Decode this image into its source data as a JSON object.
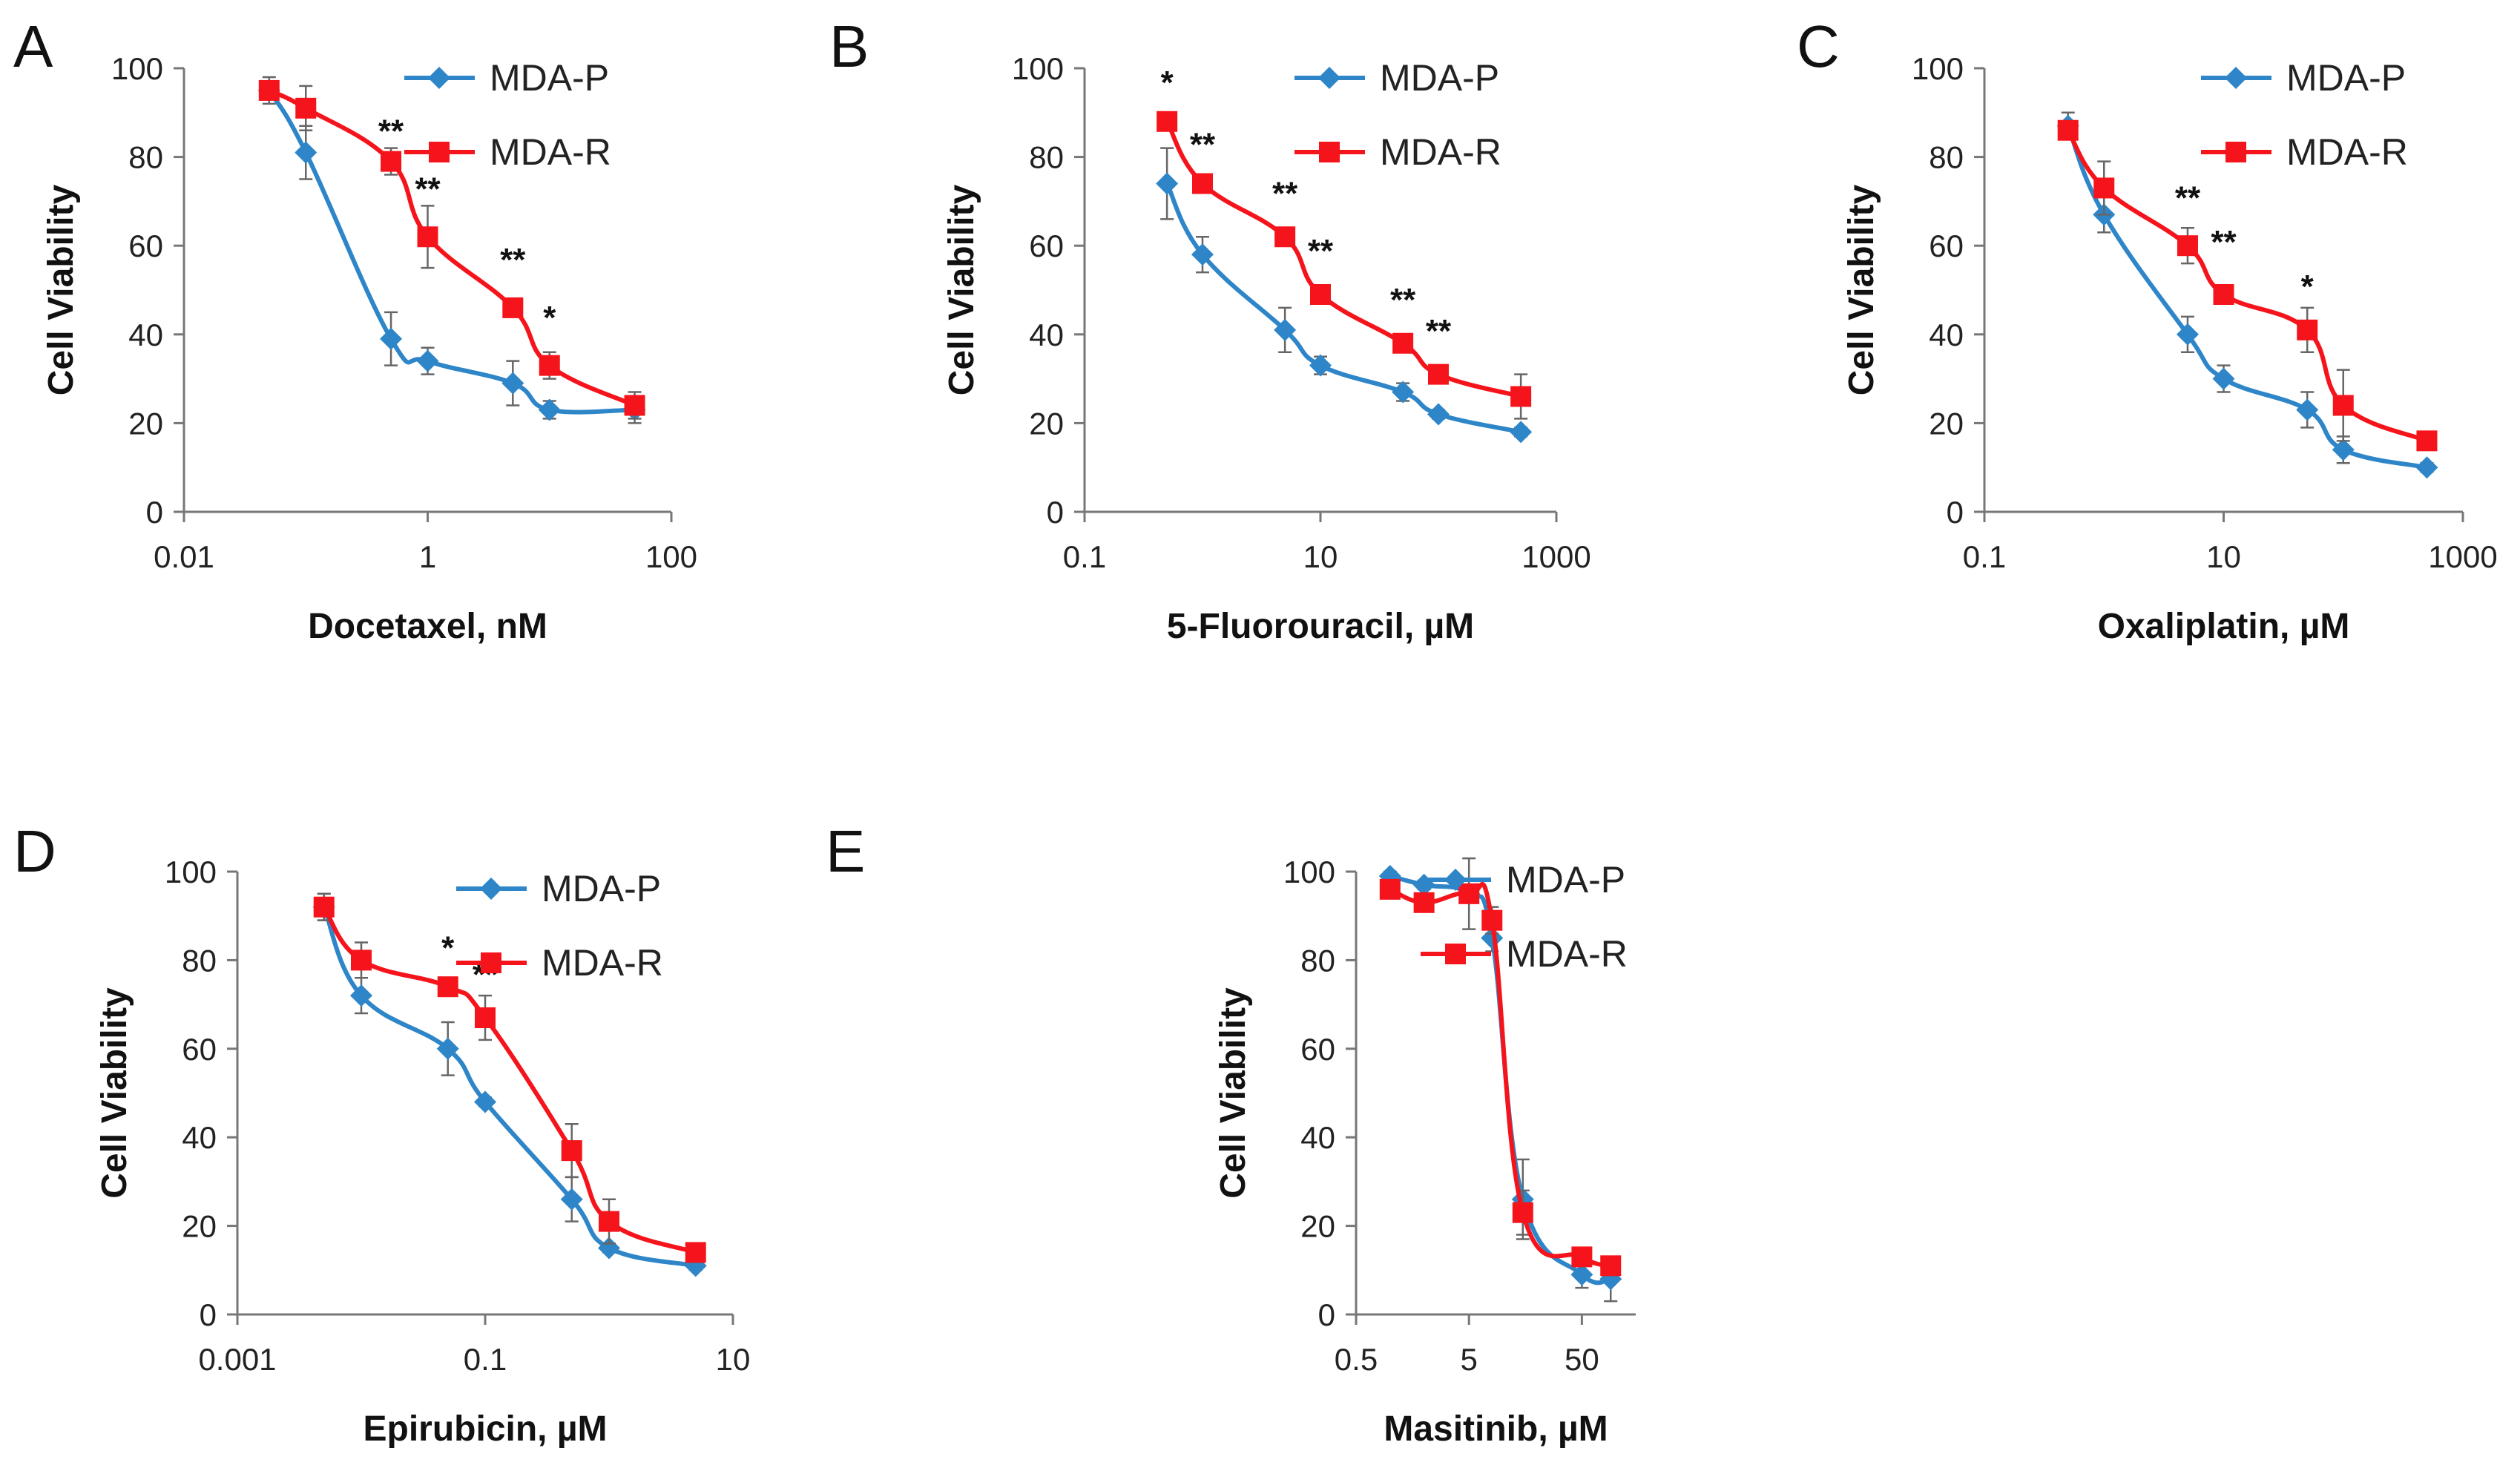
{
  "figure": {
    "series_meta": {
      "MDA-P": {
        "color": "#2E86C8",
        "marker": "diamond"
      },
      "MDA-R": {
        "color": "#F5141B",
        "marker": "square"
      }
    }
  },
  "chart_data": [
    {
      "panel": "A",
      "type": "line",
      "xscale": "log",
      "xlabel": "Docetaxel, nM",
      "ylabel": "Cell Viability",
      "xlim": [
        0.01,
        100
      ],
      "ylim": [
        0,
        100
      ],
      "xticks": [
        0.01,
        1,
        100
      ],
      "xtick_labels": [
        "0.01",
        "1",
        "100"
      ],
      "yticks": [
        0,
        20,
        40,
        60,
        80,
        100
      ],
      "ytick_labels": [
        "0",
        "20",
        "40",
        "60",
        "80",
        "100"
      ],
      "legend": [
        "MDA-P",
        "MDA-R"
      ],
      "legend_position": "top-right",
      "series": [
        {
          "name": "MDA-P",
          "x": [
            0.05,
            0.1,
            0.5,
            1,
            5,
            10,
            50
          ],
          "y": [
            95,
            81,
            39,
            34,
            29,
            23,
            23
          ],
          "err": [
            3,
            6,
            6,
            3,
            5,
            2,
            3
          ]
        },
        {
          "name": "MDA-R",
          "x": [
            0.05,
            0.1,
            0.5,
            1,
            5,
            10,
            50
          ],
          "y": [
            95,
            91,
            79,
            62,
            46,
            33,
            24
          ],
          "err": [
            2,
            5,
            3,
            7,
            2,
            3,
            3
          ]
        }
      ],
      "annotations": [
        {
          "text": "**",
          "x": 0.5,
          "y": 86
        },
        {
          "text": "**",
          "x": 1,
          "y": 73
        },
        {
          "text": "**",
          "x": 5,
          "y": 57
        },
        {
          "text": "*",
          "x": 10,
          "y": 44
        }
      ]
    },
    {
      "panel": "B",
      "type": "line",
      "xscale": "log",
      "xlabel": "5-Fluorouracil, µM",
      "ylabel": "Cell Viability",
      "xlim": [
        0.1,
        1000
      ],
      "ylim": [
        0,
        100
      ],
      "xticks": [
        0.1,
        10,
        1000
      ],
      "xtick_labels": [
        "0.1",
        "10",
        "1000"
      ],
      "yticks": [
        0,
        20,
        40,
        60,
        80,
        100
      ],
      "ytick_labels": [
        "0",
        "20",
        "40",
        "60",
        "80",
        "100"
      ],
      "legend": [
        "MDA-P",
        "MDA-R"
      ],
      "legend_position": "top-right",
      "series": [
        {
          "name": "MDA-P",
          "x": [
            0.5,
            1,
            5,
            10,
            50,
            100,
            500
          ],
          "y": [
            74,
            58,
            41,
            33,
            27,
            22,
            18
          ],
          "err": [
            8,
            4,
            5,
            2,
            2,
            1,
            1
          ]
        },
        {
          "name": "MDA-R",
          "x": [
            0.5,
            1,
            5,
            10,
            50,
            100,
            500
          ],
          "y": [
            88,
            74,
            62,
            49,
            38,
            31,
            26
          ],
          "err": [
            1,
            1,
            1,
            1,
            1,
            1,
            5
          ]
        }
      ],
      "annotations": [
        {
          "text": "*",
          "x": 0.5,
          "y": 97
        },
        {
          "text": "**",
          "x": 1,
          "y": 83
        },
        {
          "text": "**",
          "x": 5,
          "y": 72
        },
        {
          "text": "**",
          "x": 10,
          "y": 59
        },
        {
          "text": "**",
          "x": 50,
          "y": 48
        },
        {
          "text": "**",
          "x": 100,
          "y": 41
        }
      ]
    },
    {
      "panel": "C",
      "type": "line",
      "xscale": "log",
      "xlabel": "Oxaliplatin, µM",
      "ylabel": "Cell Viability",
      "xlim": [
        0.1,
        1000
      ],
      "ylim": [
        0,
        100
      ],
      "xticks": [
        0.1,
        10,
        1000
      ],
      "xtick_labels": [
        "0.1",
        "10",
        "1000"
      ],
      "yticks": [
        0,
        20,
        40,
        60,
        80,
        100
      ],
      "ytick_labels": [
        "0",
        "20",
        "40",
        "60",
        "80",
        "100"
      ],
      "legend": [
        "MDA-P",
        "MDA-R"
      ],
      "legend_position": "top-right",
      "series": [
        {
          "name": "MDA-P",
          "x": [
            0.5,
            1,
            5,
            10,
            50,
            100,
            500
          ],
          "y": [
            87,
            67,
            40,
            30,
            23,
            14,
            10
          ],
          "err": [
            3,
            4,
            4,
            3,
            4,
            3,
            1
          ]
        },
        {
          "name": "MDA-R",
          "x": [
            0.5,
            1,
            5,
            10,
            50,
            100,
            500
          ],
          "y": [
            86,
            73,
            60,
            49,
            41,
            24,
            16
          ],
          "err": [
            2,
            6,
            4,
            2,
            5,
            8,
            2
          ]
        }
      ],
      "annotations": [
        {
          "text": "**",
          "x": 5,
          "y": 71
        },
        {
          "text": "**",
          "x": 10,
          "y": 61
        },
        {
          "text": "*",
          "x": 50,
          "y": 51
        }
      ]
    },
    {
      "panel": "D",
      "type": "line",
      "xscale": "log",
      "xlabel": "Epirubicin, µM",
      "ylabel": "Cell Viability",
      "xlim": [
        0.001,
        10
      ],
      "ylim": [
        0,
        100
      ],
      "xticks": [
        0.001,
        0.1,
        10
      ],
      "xtick_labels": [
        "0.001",
        "0.1",
        "10"
      ],
      "yticks": [
        0,
        20,
        40,
        60,
        80,
        100
      ],
      "ytick_labels": [
        "0",
        "20",
        "40",
        "60",
        "80",
        "100"
      ],
      "legend": [
        "MDA-P",
        "MDA-R"
      ],
      "legend_position": "top-right",
      "series": [
        {
          "name": "MDA-P",
          "x": [
            0.005,
            0.01,
            0.05,
            0.1,
            0.5,
            1,
            5
          ],
          "y": [
            92,
            72,
            60,
            48,
            26,
            15,
            11
          ],
          "err": [
            3,
            4,
            6,
            1,
            5,
            1,
            1
          ]
        },
        {
          "name": "MDA-R",
          "x": [
            0.005,
            0.01,
            0.05,
            0.1,
            0.5,
            1,
            5
          ],
          "y": [
            92,
            80,
            74,
            67,
            37,
            21,
            14
          ],
          "err": [
            3,
            4,
            1,
            5,
            6,
            5,
            2
          ]
        }
      ],
      "annotations": [
        {
          "text": "*",
          "x": 0.05,
          "y": 83
        },
        {
          "text": "**",
          "x": 0.1,
          "y": 77
        }
      ]
    },
    {
      "panel": "E",
      "type": "line",
      "xscale": "log",
      "xlabel": "Masitinib, µM",
      "ylabel": "Cell Viability",
      "xlim": [
        0.5,
        150
      ],
      "ylim": [
        0,
        100
      ],
      "xticks": [
        0.5,
        5,
        50
      ],
      "xtick_labels": [
        "0.5",
        "5",
        "50"
      ],
      "yticks": [
        0,
        20,
        40,
        60,
        80,
        100
      ],
      "ytick_labels": [
        "0",
        "20",
        "40",
        "60",
        "80",
        "100"
      ],
      "legend": [
        "MDA-P",
        "MDA-R"
      ],
      "legend_position": "top-right",
      "series": [
        {
          "name": "MDA-P",
          "x": [
            1,
            2,
            5,
            8,
            15,
            50,
            90
          ],
          "y": [
            99,
            97,
            95,
            85,
            26,
            9,
            8
          ],
          "err": [
            1,
            1,
            1,
            3,
            9,
            3,
            5
          ]
        },
        {
          "name": "MDA-R",
          "x": [
            1,
            2,
            5,
            8,
            15,
            50,
            90
          ],
          "y": [
            96,
            93,
            95,
            89,
            23,
            13,
            11
          ],
          "err": [
            1,
            1,
            8,
            3,
            5,
            2,
            2
          ]
        }
      ],
      "annotations": []
    }
  ]
}
